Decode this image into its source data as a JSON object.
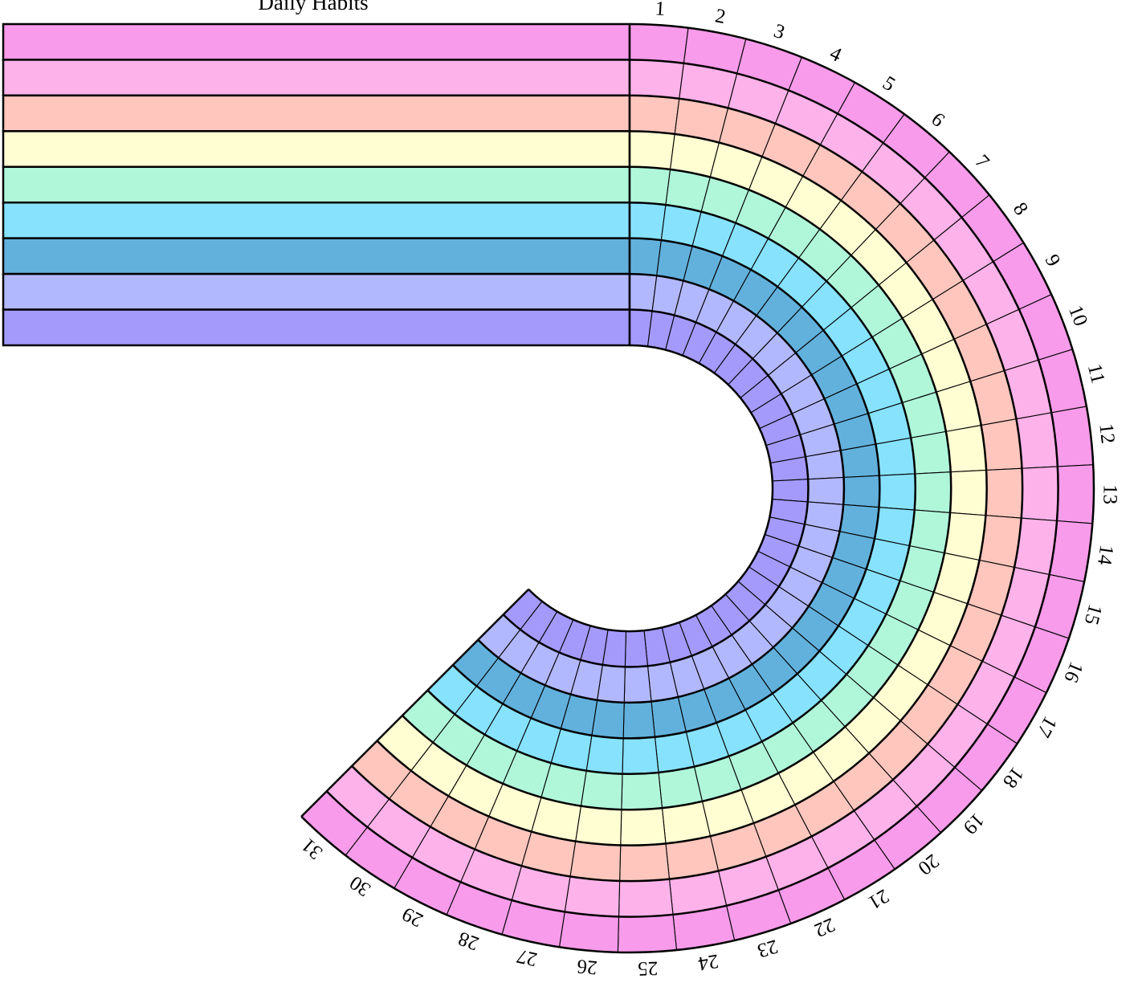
{
  "title": "Daily Habits",
  "habit_rows": [
    {
      "color": "#f79bea"
    },
    {
      "color": "#fdb2ea"
    },
    {
      "color": "#fec6bd"
    },
    {
      "color": "#fffdd2"
    },
    {
      "color": "#b0f7da"
    },
    {
      "color": "#87e2fd"
    },
    {
      "color": "#62b1dd"
    },
    {
      "color": "#b2b8fe"
    },
    {
      "color": "#a49afc"
    }
  ],
  "days": [
    "1",
    "2",
    "3",
    "4",
    "5",
    "6",
    "7",
    "8",
    "9",
    "10",
    "11",
    "12",
    "13",
    "14",
    "15",
    "16",
    "17",
    "18",
    "19",
    "20",
    "21",
    "22",
    "23",
    "24",
    "25",
    "26",
    "27",
    "28",
    "29",
    "30",
    "31"
  ]
}
